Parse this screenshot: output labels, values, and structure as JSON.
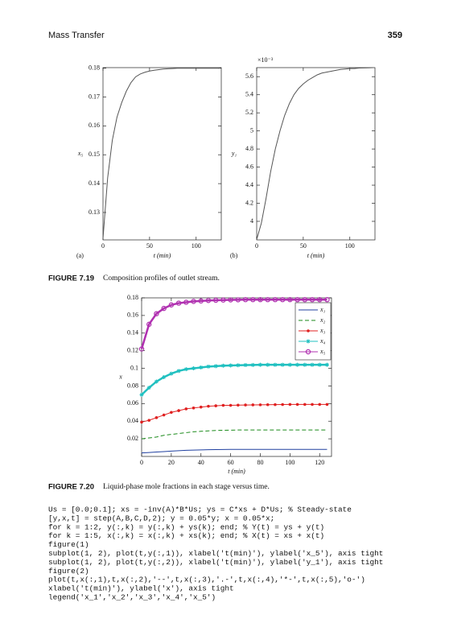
{
  "header": {
    "title": "Mass Transfer",
    "page_number": "359"
  },
  "chart_data": [
    {
      "type": "line",
      "panel_label": "(a)",
      "x_label": "t (min)",
      "y_label": "x₅",
      "color": "#555555",
      "x": [
        0,
        5,
        10,
        15,
        20,
        25,
        30,
        35,
        40,
        45,
        50,
        55,
        60,
        65,
        70,
        75,
        80,
        85,
        90,
        95,
        100,
        105,
        110,
        115,
        120,
        125
      ],
      "values": [
        0.121,
        0.142,
        0.155,
        0.163,
        0.168,
        0.172,
        0.175,
        0.177,
        0.178,
        0.1786,
        0.179,
        0.1793,
        0.1795,
        0.1797,
        0.1798,
        0.1799,
        0.18,
        0.18,
        0.18,
        0.18,
        0.18,
        0.18,
        0.18,
        0.18,
        0.18,
        0.18
      ],
      "xlim": [
        0,
        127
      ],
      "ylim": [
        0.1205,
        0.1802
      ],
      "xticks": [
        0,
        50,
        100
      ],
      "yticks": [
        0.13,
        0.14,
        0.15,
        0.16,
        0.17,
        0.18
      ]
    },
    {
      "type": "line",
      "panel_label": "(b)",
      "x_label": "t (min)",
      "y_label": "y₁",
      "y_multiplier": "×10⁻³",
      "color": "#555555",
      "x": [
        0,
        5,
        10,
        15,
        20,
        25,
        30,
        35,
        40,
        45,
        50,
        55,
        60,
        65,
        70,
        75,
        80,
        85,
        90,
        95,
        100,
        105,
        110,
        115,
        120,
        125
      ],
      "values": [
        3.8,
        3.98,
        4.25,
        4.55,
        4.8,
        5.0,
        5.17,
        5.3,
        5.4,
        5.47,
        5.52,
        5.56,
        5.59,
        5.62,
        5.64,
        5.65,
        5.66,
        5.67,
        5.68,
        5.685,
        5.69,
        5.69,
        5.695,
        5.697,
        5.698,
        5.7
      ],
      "xlim": [
        0,
        127
      ],
      "ylim": [
        3.795,
        5.7
      ],
      "xticks": [
        0,
        50,
        100
      ],
      "yticks": [
        4,
        4.2,
        4.4,
        4.6,
        4.8,
        5,
        5.2,
        5.4,
        5.6
      ]
    },
    {
      "type": "line",
      "x_label": "t (min)",
      "y_label": "x",
      "x": [
        0,
        5,
        10,
        15,
        20,
        25,
        30,
        35,
        40,
        45,
        50,
        55,
        60,
        65,
        70,
        75,
        80,
        85,
        90,
        95,
        100,
        105,
        110,
        115,
        120,
        125
      ],
      "series": [
        {
          "name": "x₁",
          "color": "#2040a0",
          "line_style": "solid",
          "marker": "none",
          "values": [
            0.004,
            0.0045,
            0.005,
            0.0055,
            0.006,
            0.0065,
            0.007,
            0.0072,
            0.0074,
            0.0076,
            0.0078,
            0.0079,
            0.008,
            0.008,
            0.008,
            0.008,
            0.008,
            0.008,
            0.008,
            0.008,
            0.008,
            0.008,
            0.008,
            0.008,
            0.008,
            0.008
          ]
        },
        {
          "name": "x₂",
          "color": "#1a8a1a",
          "line_style": "dashed",
          "marker": "none",
          "values": [
            0.02,
            0.021,
            0.022,
            0.024,
            0.025,
            0.026,
            0.027,
            0.028,
            0.0285,
            0.029,
            0.0295,
            0.0297,
            0.0298,
            0.03,
            0.03,
            0.03,
            0.03,
            0.03,
            0.03,
            0.03,
            0.03,
            0.03,
            0.03,
            0.03,
            0.03,
            0.03
          ]
        },
        {
          "name": "x₃",
          "color": "#e02020",
          "line_style": "solid",
          "marker": "dot",
          "values": [
            0.039,
            0.041,
            0.044,
            0.047,
            0.05,
            0.052,
            0.054,
            0.055,
            0.056,
            0.057,
            0.0575,
            0.058,
            0.058,
            0.0582,
            0.0584,
            0.0585,
            0.0586,
            0.0587,
            0.0588,
            0.0589,
            0.059,
            0.059,
            0.059,
            0.059,
            0.059,
            0.059
          ]
        },
        {
          "name": "x₄",
          "color": "#20c0c0",
          "line_style": "solid",
          "marker": "star",
          "values": [
            0.07,
            0.078,
            0.085,
            0.09,
            0.094,
            0.097,
            0.099,
            0.1,
            0.101,
            0.102,
            0.1025,
            0.103,
            0.1033,
            0.1035,
            0.1037,
            0.1038,
            0.104,
            0.104,
            0.104,
            0.104,
            0.104,
            0.104,
            0.104,
            0.104,
            0.104,
            0.104
          ]
        },
        {
          "name": "x₅",
          "color": "#b030b0",
          "line_style": "solid",
          "marker": "circle",
          "values": [
            0.122,
            0.15,
            0.162,
            0.168,
            0.172,
            0.174,
            0.175,
            0.176,
            0.1765,
            0.177,
            0.1773,
            0.1775,
            0.1777,
            0.1778,
            0.178,
            0.178,
            0.178,
            0.178,
            0.178,
            0.178,
            0.178,
            0.178,
            0.178,
            0.178,
            0.178,
            0.178
          ]
        }
      ],
      "legend": "upper right",
      "xlim": [
        0,
        128
      ],
      "ylim": [
        0,
        0.18
      ],
      "xticks": [
        0,
        20,
        40,
        60,
        80,
        100,
        120
      ],
      "yticks": [
        0.02,
        0.04,
        0.06,
        0.08,
        0.1,
        0.12,
        0.14,
        0.16,
        0.18
      ]
    }
  ],
  "figures": [
    {
      "label": "FIGURE 7.19",
      "caption": "Composition profiles of outlet stream."
    },
    {
      "label": "FIGURE 7.20",
      "caption": "Liquid-phase mole fractions in each stage versus time."
    }
  ],
  "code": [
    "Us = [0.0;0.1]; xs = -inv(A)*B*Us; ys = C*xs + D*Us; % Steady-state",
    "[y,x,t] = step(A,B,C,D,2); y = 0.05*y; x = 0.05*x;",
    "for k = 1:2, y(:,k) = y(:,k) + ys(k); end; % Y(t) = ys + y(t)",
    "for k = 1:5, x(:,k) = x(:,k) + xs(k); end; % X(t) = xs + x(t)",
    "figure(1)",
    "subplot(1, 2), plot(t,y(:,1)), xlabel('t(min)'), ylabel('x_5'), axis tight",
    "subplot(1, 2), plot(t,y(:,2)), xlabel('t(min)'), ylabel('y_1'), axis tight",
    "figure(2)",
    "plot(t,x(:,1),t,x(:,2),'--',t,x(:,3),'.-',t,x(:,4),'*-',t,x(:,5),'o-')",
    "xlabel('t(min)'), ylabel('x'), axis tight",
    "legend('x_1','x_2','x_3','x_4','x_5')"
  ]
}
